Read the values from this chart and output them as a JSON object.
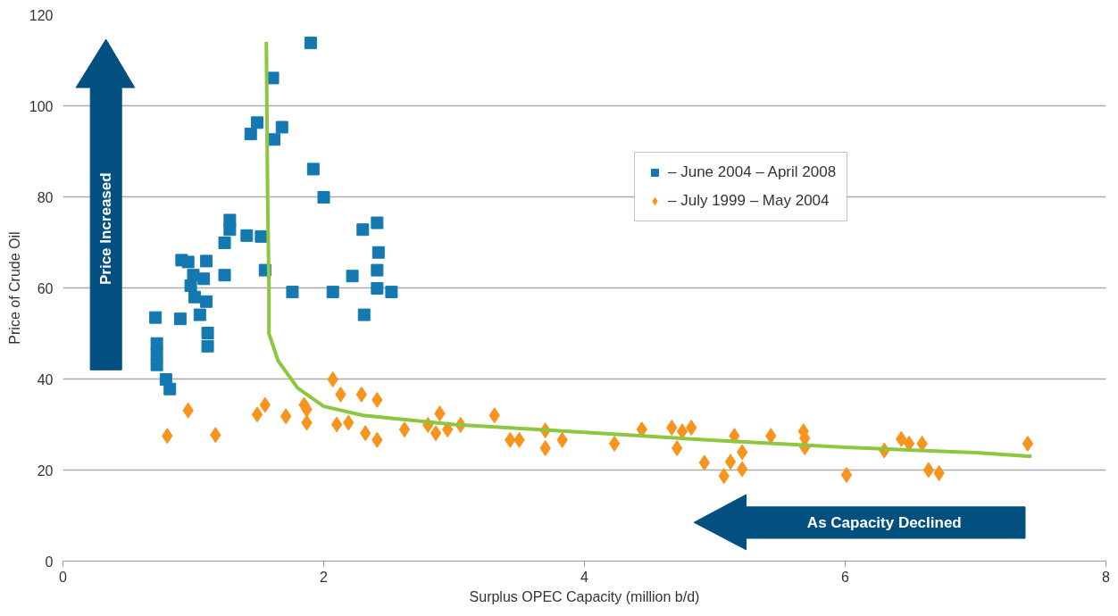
{
  "chart_data": {
    "type": "scatter",
    "xlabel": "Surplus OPEC Capacity (million b/d)",
    "ylabel": "Price of Crude Oil",
    "xlim": [
      0,
      8
    ],
    "xticks": [
      0,
      2,
      4,
      6,
      8
    ],
    "ylim": [
      0,
      120
    ],
    "yticks": [
      0,
      20,
      40,
      60,
      80,
      100,
      120
    ],
    "grid": "y",
    "legend": "top right",
    "annotations": [
      "Price Increased",
      "As Capacity Declined"
    ],
    "series": [
      {
        "name": "– June 2004 – April 2008",
        "color": "#1479b0",
        "marker": "square",
        "x": [
          1.9,
          1.61,
          1.49,
          1.44,
          1.68,
          1.62,
          1.92,
          2.0,
          1.28,
          1.28,
          1.41,
          1.52,
          1.24,
          2.41,
          2.3,
          2.42,
          0.91,
          0.96,
          1.1,
          2.41,
          1.55,
          1.24,
          2.22,
          1.0,
          1.08,
          0.98,
          2.41,
          1.76,
          2.07,
          2.52,
          1.01,
          1.1,
          2.31,
          1.05,
          0.71,
          0.9,
          1.11,
          1.11,
          0.72,
          0.72,
          0.72,
          0.79,
          0.82
        ],
        "values": [
          113.8,
          106.1,
          96.3,
          93.8,
          95.3,
          92.6,
          86.1,
          79.9,
          74.9,
          72.8,
          71.5,
          71.3,
          69.9,
          74.3,
          72.8,
          67.8,
          66.1,
          65.7,
          65.9,
          63.9,
          63.9,
          62.8,
          62.6,
          62.8,
          62.0,
          60.5,
          59.9,
          59.1,
          59.1,
          59.1,
          58.0,
          57.0,
          54.1,
          54.1,
          53.5,
          53.2,
          50.1,
          47.2,
          47.8,
          45.5,
          43.1,
          39.9,
          37.8
        ]
      },
      {
        "name": "– July 1999 – May 2004",
        "color": "#f7941d",
        "marker": "diamond",
        "x": [
          0.8,
          0.96,
          1.17,
          1.49,
          1.55,
          1.71,
          1.85,
          1.87,
          1.87,
          2.07,
          2.13,
          2.1,
          2.19,
          2.29,
          2.32,
          2.41,
          2.41,
          2.62,
          2.8,
          2.86,
          2.89,
          2.95,
          3.05,
          3.31,
          3.43,
          3.5,
          3.7,
          3.7,
          3.83,
          4.23,
          4.44,
          4.67,
          4.75,
          4.82,
          4.71,
          4.92,
          5.07,
          5.12,
          5.15,
          5.21,
          5.21,
          5.43,
          5.68,
          5.69,
          5.69,
          6.01,
          6.3,
          6.43,
          6.49,
          6.59,
          6.64,
          6.72,
          7.4
        ],
        "values": [
          27.5,
          33.1,
          27.7,
          32.2,
          34.3,
          31.8,
          34.3,
          33.3,
          30.4,
          39.9,
          36.6,
          30.0,
          30.4,
          36.6,
          28.1,
          35.4,
          26.6,
          28.9,
          29.9,
          28.1,
          32.4,
          28.9,
          29.9,
          32.0,
          26.6,
          26.6,
          28.7,
          24.8,
          26.6,
          25.8,
          28.9,
          29.3,
          28.5,
          29.3,
          24.8,
          21.6,
          18.7,
          21.8,
          27.5,
          23.9,
          20.2,
          27.5,
          28.5,
          27.0,
          25.0,
          18.9,
          24.3,
          26.8,
          25.8,
          25.8,
          20.0,
          19.3,
          25.8
        ]
      },
      {
        "type": "line",
        "color": "#8dc63f",
        "x": [
          1.56,
          1.57,
          1.58,
          1.58,
          1.65,
          1.8,
          2.0,
          2.3,
          3.0,
          4.0,
          5.0,
          6.0,
          7.0,
          7.43
        ],
        "values": [
          114,
          80,
          60,
          50,
          44,
          38,
          34,
          32,
          30,
          28.3,
          26.5,
          25,
          23.8,
          23
        ]
      }
    ]
  }
}
